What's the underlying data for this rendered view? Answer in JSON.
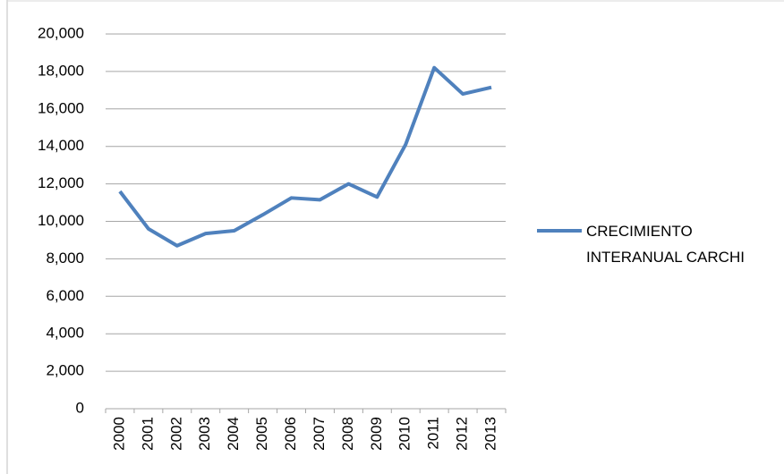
{
  "chart_data": {
    "type": "line",
    "categories": [
      "2000",
      "2001",
      "2002",
      "2003",
      "2004",
      "2005",
      "2006",
      "2007",
      "2008",
      "2009",
      "2010",
      "2011",
      "2012",
      "2013"
    ],
    "series": [
      {
        "name": "CRECIMIENTO INTERANUAL CARCHI",
        "color": "#4f81bd",
        "values": [
          11600,
          9600,
          8700,
          9350,
          9500,
          10350,
          11250,
          11150,
          12000,
          11300,
          14100,
          18200,
          16800,
          17150
        ]
      }
    ],
    "ylim": [
      0,
      20000
    ],
    "yticks": [
      0,
      {
        "value": 2000,
        "label": "2,000"
      },
      {
        "value": 4000,
        "label": "4,000"
      },
      {
        "value": 6000,
        "label": "6,000"
      },
      {
        "value": 8000,
        "label": "8,000"
      },
      {
        "value": 10000,
        "label": "10,000"
      },
      {
        "value": 12000,
        "label": "12,000"
      },
      {
        "value": 14000,
        "label": "14,000"
      },
      {
        "value": 16000,
        "label": "16,000"
      },
      {
        "value": 18000,
        "label": "18,000"
      },
      {
        "value": 20000,
        "label": "20,000"
      }
    ],
    "grid": true,
    "legend": "right"
  }
}
